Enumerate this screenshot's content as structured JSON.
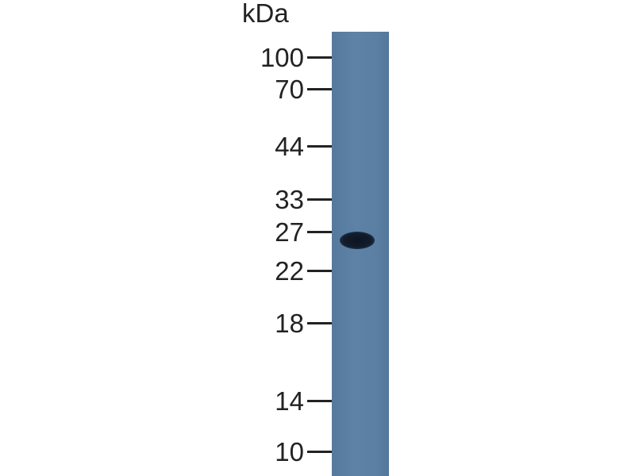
{
  "unit_label": "kDa",
  "markers": [
    "100",
    "70",
    "44",
    "33",
    "27",
    "22",
    "18",
    "14",
    "10"
  ],
  "lanes": [
    {
      "band_kDa": 26
    }
  ],
  "colors": {
    "membrane": "#5a7ea2",
    "band": "#101a28",
    "text": "#222222"
  }
}
